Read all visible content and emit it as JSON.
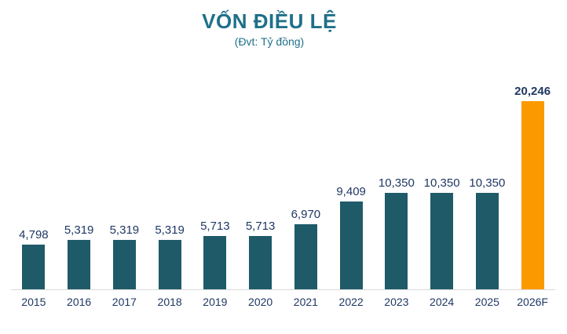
{
  "title": "VỐN ĐIỀU LỆ",
  "subtitle": "(Đvt: Tỷ đồng)",
  "chart_data": {
    "type": "bar",
    "title": "VỐN ĐIỀU LỆ",
    "subtitle": "(Đvt: Tỷ đồng)",
    "unit": "Tỷ đồng",
    "categories": [
      "2015",
      "2016",
      "2017",
      "2018",
      "2019",
      "2020",
      "2021",
      "2022",
      "2023",
      "2024",
      "2025",
      "2026F"
    ],
    "values": [
      4798,
      5319,
      5319,
      5319,
      5713,
      5713,
      6970,
      9409,
      10350,
      10350,
      10350,
      20246
    ],
    "value_labels": [
      "4,798",
      "5,319",
      "5,319",
      "5,319",
      "5,713",
      "5,713",
      "6,970",
      "9,409",
      "10,350",
      "10,350",
      "10,350",
      "20,246"
    ],
    "xlabel": "",
    "ylabel": "",
    "ylim": [
      0,
      20246
    ],
    "grid": false,
    "legend": false,
    "bar_color": "#1F5A68",
    "highlight_color": "#FB9900",
    "highlight_index": 11,
    "title_color": "#1F7089",
    "value_label_color": "#1F3864",
    "tick_label_color": "#1F3864",
    "axis_line_color": "#D9D9D9"
  }
}
